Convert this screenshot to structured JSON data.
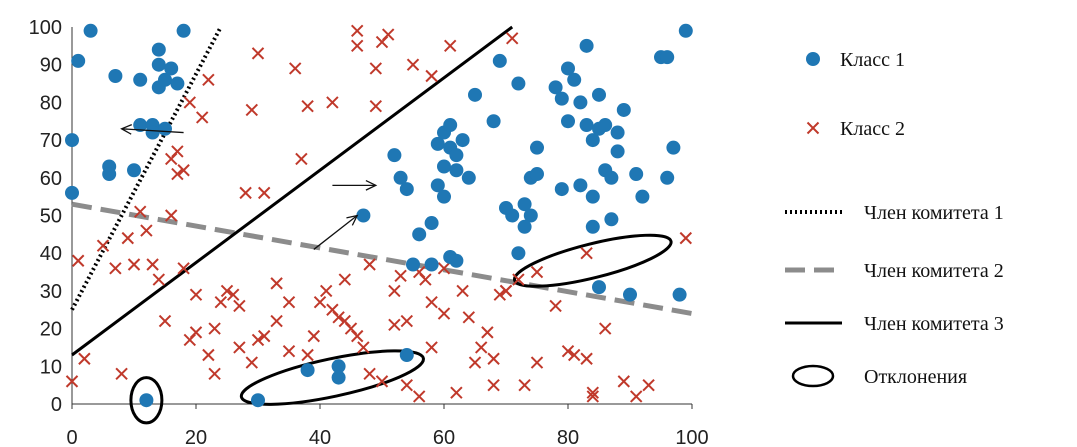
{
  "chart_data": {
    "type": "scatter",
    "xlim": [
      0,
      100
    ],
    "ylim": [
      0,
      100
    ],
    "xticks": [
      "0",
      "20",
      "40",
      "60",
      "80",
      "100"
    ],
    "yticks": [
      "0",
      "10",
      "20",
      "30",
      "40",
      "50",
      "60",
      "70",
      "80",
      "90",
      "100"
    ],
    "grid": false,
    "legend_position": "right",
    "series": [
      {
        "name": "Класс 1",
        "marker": "circle",
        "color": "#1f77b4",
        "points": [
          [
            3,
            99
          ],
          [
            18,
            99
          ],
          [
            1,
            91
          ],
          [
            14,
            94
          ],
          [
            7,
            87
          ],
          [
            11,
            86
          ],
          [
            14,
            84
          ],
          [
            15,
            86
          ],
          [
            17,
            85
          ],
          [
            14,
            90
          ],
          [
            16,
            89
          ],
          [
            11,
            74
          ],
          [
            13,
            74
          ],
          [
            15,
            73
          ],
          [
            13,
            72
          ],
          [
            0,
            70
          ],
          [
            6,
            63
          ],
          [
            6,
            61
          ],
          [
            10,
            62
          ],
          [
            0,
            56
          ],
          [
            52,
            66
          ],
          [
            53,
            60
          ],
          [
            54,
            57
          ],
          [
            47,
            50
          ],
          [
            56,
            45
          ],
          [
            58,
            48
          ],
          [
            55,
            37
          ],
          [
            58,
            37
          ],
          [
            61,
            39
          ],
          [
            62,
            38
          ],
          [
            59,
            69
          ],
          [
            60,
            72
          ],
          [
            61,
            74
          ],
          [
            61,
            68
          ],
          [
            63,
            70
          ],
          [
            62,
            66
          ],
          [
            62,
            62
          ],
          [
            64,
            60
          ],
          [
            60,
            63
          ],
          [
            59,
            58
          ],
          [
            60,
            55
          ],
          [
            65,
            82
          ],
          [
            68,
            75
          ],
          [
            69,
            91
          ],
          [
            72,
            85
          ],
          [
            73,
            53
          ],
          [
            74,
            60
          ],
          [
            75,
            61
          ],
          [
            74,
            50
          ],
          [
            73,
            47
          ],
          [
            71,
            50
          ],
          [
            72,
            40
          ],
          [
            70,
            52
          ],
          [
            75,
            68
          ],
          [
            78,
            84
          ],
          [
            79,
            81
          ],
          [
            80,
            89
          ],
          [
            81,
            86
          ],
          [
            82,
            80
          ],
          [
            80,
            75
          ],
          [
            83,
            95
          ],
          [
            83,
            74
          ],
          [
            84,
            70
          ],
          [
            85,
            73
          ],
          [
            86,
            74
          ],
          [
            85,
            82
          ],
          [
            86,
            62
          ],
          [
            87,
            60
          ],
          [
            79,
            57
          ],
          [
            82,
            58
          ],
          [
            84,
            55
          ],
          [
            84,
            47
          ],
          [
            87,
            49
          ],
          [
            88,
            72
          ],
          [
            88,
            67
          ],
          [
            89,
            78
          ],
          [
            91,
            61
          ],
          [
            92,
            55
          ],
          [
            95,
            92
          ],
          [
            96,
            92
          ],
          [
            96,
            60
          ],
          [
            97,
            68
          ],
          [
            99,
            99
          ],
          [
            85,
            31
          ],
          [
            90,
            29
          ],
          [
            98,
            29
          ],
          [
            12,
            1
          ],
          [
            30,
            1
          ],
          [
            38,
            9
          ],
          [
            43,
            10
          ],
          [
            43,
            7
          ],
          [
            54,
            13
          ]
        ]
      },
      {
        "name": "Класс 2",
        "marker": "x",
        "color": "#c0392b",
        "points": [
          [
            1,
            38
          ],
          [
            2,
            12
          ],
          [
            0,
            6
          ],
          [
            8,
            8
          ],
          [
            9,
            44
          ],
          [
            10,
            37
          ],
          [
            11,
            51
          ],
          [
            13,
            37
          ],
          [
            15,
            22
          ],
          [
            16,
            65
          ],
          [
            17,
            67
          ],
          [
            17,
            61
          ],
          [
            18,
            36
          ],
          [
            19,
            17
          ],
          [
            19,
            80
          ],
          [
            21,
            76
          ],
          [
            22,
            86
          ],
          [
            22,
            13
          ],
          [
            23,
            8
          ],
          [
            20,
            29
          ],
          [
            24,
            27
          ],
          [
            26,
            29
          ],
          [
            27,
            15
          ],
          [
            28,
            56
          ],
          [
            29,
            78
          ],
          [
            30,
            93
          ],
          [
            31,
            56
          ],
          [
            31,
            18
          ],
          [
            33,
            32
          ],
          [
            35,
            27
          ],
          [
            36,
            89
          ],
          [
            38,
            79
          ],
          [
            37,
            65
          ],
          [
            38,
            13
          ],
          [
            42,
            80
          ],
          [
            41,
            30
          ],
          [
            42,
            25
          ],
          [
            43,
            23
          ],
          [
            44,
            22
          ],
          [
            45,
            20
          ],
          [
            46,
            95
          ],
          [
            46,
            99
          ],
          [
            47,
            15
          ],
          [
            48,
            37
          ],
          [
            49,
            79
          ],
          [
            49,
            89
          ],
          [
            50,
            96
          ],
          [
            51,
            98
          ],
          [
            52,
            30
          ],
          [
            53,
            34
          ],
          [
            54,
            22
          ],
          [
            55,
            90
          ],
          [
            56,
            35
          ],
          [
            57,
            33
          ],
          [
            58,
            87
          ],
          [
            58,
            27
          ],
          [
            60,
            36
          ],
          [
            61,
            95
          ],
          [
            62,
            3
          ],
          [
            64,
            23
          ],
          [
            65,
            11
          ],
          [
            67,
            19
          ],
          [
            68,
            12
          ],
          [
            68,
            5
          ],
          [
            69,
            29
          ],
          [
            70,
            30
          ],
          [
            71,
            97
          ],
          [
            72,
            33
          ],
          [
            73,
            5
          ],
          [
            75,
            11
          ],
          [
            75,
            35
          ],
          [
            78,
            26
          ],
          [
            80,
            14
          ],
          [
            81,
            13
          ],
          [
            83,
            40
          ],
          [
            83,
            12
          ],
          [
            84,
            3
          ],
          [
            84,
            2
          ],
          [
            86,
            20
          ],
          [
            89,
            6
          ],
          [
            91,
            2
          ],
          [
            93,
            5
          ],
          [
            99,
            44
          ],
          [
            5,
            42
          ],
          [
            7,
            36
          ],
          [
            12,
            46
          ],
          [
            14,
            33
          ],
          [
            16,
            50
          ],
          [
            18,
            62
          ],
          [
            20,
            19
          ],
          [
            23,
            20
          ],
          [
            25,
            30
          ],
          [
            27,
            26
          ],
          [
            29,
            11
          ],
          [
            30,
            17
          ],
          [
            33,
            22
          ],
          [
            35,
            14
          ],
          [
            39,
            18
          ],
          [
            40,
            27
          ],
          [
            44,
            33
          ],
          [
            46,
            18
          ],
          [
            48,
            8
          ],
          [
            50,
            6
          ],
          [
            52,
            21
          ],
          [
            54,
            5
          ],
          [
            56,
            2
          ],
          [
            58,
            15
          ],
          [
            60,
            24
          ],
          [
            63,
            30
          ],
          [
            66,
            15
          ],
          [
            70,
            30
          ]
        ]
      },
      {
        "name": "Член комитета 1",
        "style": "dotted",
        "color": "#000000",
        "points": [
          [
            0,
            25
          ],
          [
            24,
            100
          ]
        ]
      },
      {
        "name": "Член комитета 2",
        "style": "dashed",
        "color": "#8c8c8c",
        "points": [
          [
            0,
            53
          ],
          [
            100,
            24
          ]
        ]
      },
      {
        "name": "Член комитета 3",
        "style": "solid",
        "color": "#000000",
        "points": [
          [
            0,
            13
          ],
          [
            71,
            100
          ]
        ]
      },
      {
        "name": "Отклонения",
        "style": "ellipse",
        "color": "#000000",
        "regions": [
          {
            "cx": 12,
            "cy": 1,
            "rx": 2.5,
            "ry": 6
          },
          {
            "cx": 42,
            "cy": 7,
            "rx": 15,
            "ry": 5,
            "rotate": -12
          },
          {
            "cx": 84,
            "cy": 38,
            "rx": 13,
            "ry": 4.5,
            "rotate": -14
          }
        ]
      }
    ],
    "arrows": [
      {
        "from": [
          18,
          72
        ],
        "to": [
          8,
          73
        ]
      },
      {
        "from": [
          42,
          58
        ],
        "to": [
          49,
          58
        ]
      },
      {
        "from": [
          39,
          41
        ],
        "to": [
          46,
          50
        ]
      }
    ]
  }
}
